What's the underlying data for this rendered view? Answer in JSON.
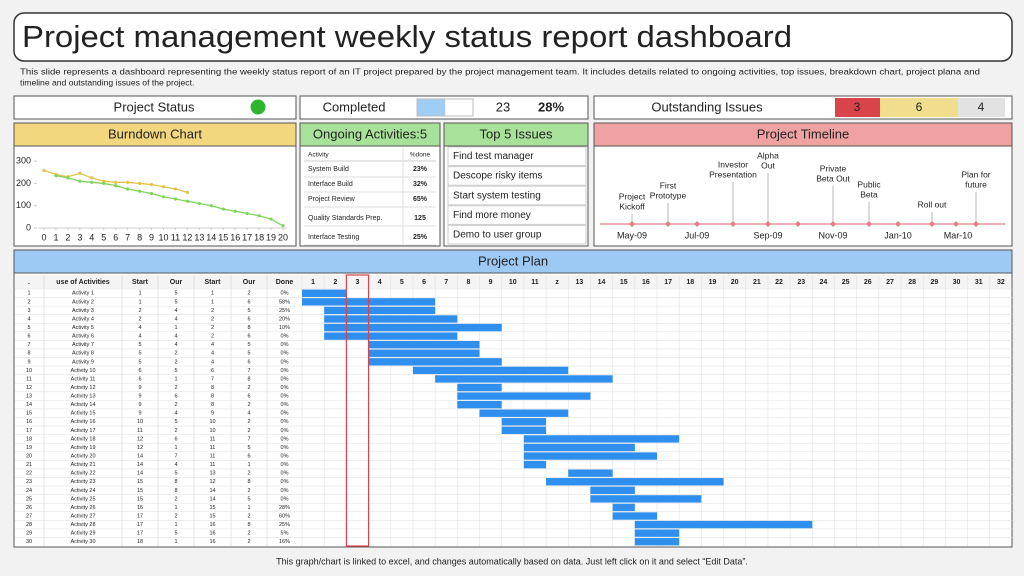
{
  "header": {
    "title": "Project management weekly status report dashboard",
    "description": [
      "This slide represents a dashboard representing the weekly status report of an IT project prepared by the project management team. It includes details related to ongoing activities, top issues, breakdown chart, project plana and",
      "timeline and outstanding issues of the project."
    ]
  },
  "status": {
    "project_status_label": "Project Status",
    "completed_label": "Completed",
    "completed_count": 23,
    "completed_percent": {
      "value": 28,
      "label": "28%"
    },
    "outstanding_label": "Outstanding Issues",
    "outstanding_counts": [
      3,
      6,
      4
    ]
  },
  "chart_data": {
    "type": "line",
    "title": "Burndown Chart",
    "x": [
      0,
      1,
      2,
      3,
      4,
      5,
      6,
      7,
      8,
      9,
      10,
      11,
      12,
      13,
      14,
      15,
      16,
      17,
      18,
      19,
      20
    ],
    "series": [
      {
        "color": "#e3c24a",
        "values": [
          258,
          240,
          230,
          245,
          225,
          210,
          205,
          205,
          200,
          195,
          185,
          175,
          160,
          null,
          null,
          null,
          null,
          null,
          null,
          null,
          null
        ]
      },
      {
        "color": "#7fd45c",
        "values": [
          null,
          235,
          225,
          210,
          205,
          200,
          190,
          175,
          165,
          155,
          140,
          130,
          120,
          110,
          100,
          85,
          75,
          65,
          55,
          40,
          10
        ]
      }
    ],
    "xlim": [
      0,
      20
    ],
    "ylim": [
      0,
      350
    ],
    "xticks": [
      0,
      1,
      2,
      3,
      4,
      5,
      6,
      7,
      8,
      9,
      10,
      11,
      12,
      13,
      14,
      15,
      16,
      17,
      18,
      19,
      20
    ],
    "yticks": [
      0,
      100,
      200,
      300
    ]
  },
  "ongoing": {
    "title": "Ongoing Activities:5",
    "columns": [
      "Activity",
      "%done"
    ],
    "rows": [
      [
        "System Build",
        "23%"
      ],
      [
        "Interface Build",
        "32%"
      ],
      [
        "Project Review",
        "65%"
      ],
      [
        "Quality Standards Prep.",
        "125"
      ],
      [
        "Interface Testing",
        "25%"
      ]
    ]
  },
  "issues": {
    "title": "Top 5 Issues",
    "items": [
      "Find test manager",
      "Descope risky items",
      "Start system testing",
      "Find more money",
      "Demo to user group"
    ]
  },
  "timeline": {
    "title": "Project Timeline",
    "months": [
      "May-09",
      "Jul-09",
      "Sep-09",
      "Nov-09",
      "Jan-10",
      "Mar-10"
    ],
    "events": [
      [
        "Project",
        "Kickoff"
      ],
      [
        "First",
        "Prototype"
      ],
      [
        "Investor",
        "Presentation"
      ],
      [
        "Alpha",
        "Out"
      ],
      [
        "Private",
        "Beta Out"
      ],
      [
        "Public",
        "Beta"
      ],
      [
        "Roll out"
      ],
      [
        "Plan  for",
        "future"
      ]
    ]
  },
  "plan": {
    "title": "Project Plan",
    "columns": [
      ".",
      "use of Activities",
      "Start",
      "Our",
      "Start",
      "Our",
      "Done"
    ],
    "weeks": [
      1,
      2,
      3,
      4,
      5,
      6,
      7,
      8,
      9,
      10,
      11,
      "z",
      13,
      14,
      15,
      16,
      17,
      18,
      19,
      20,
      21,
      22,
      23,
      24,
      25,
      26,
      27,
      28,
      29,
      30,
      31,
      32
    ],
    "rows": [
      [
        1,
        "Activity 1",
        1,
        5,
        1,
        2,
        "0%"
      ],
      [
        2,
        "Activity 2",
        1,
        5,
        1,
        6,
        "58%"
      ],
      [
        3,
        "Activity 3",
        2,
        4,
        2,
        5,
        "25%"
      ],
      [
        4,
        "Activity 4",
        2,
        4,
        2,
        6,
        "20%"
      ],
      [
        5,
        "Activity 5",
        4,
        1,
        2,
        8,
        "10%"
      ],
      [
        6,
        "Activity 6",
        4,
        4,
        2,
        6,
        "0%"
      ],
      [
        7,
        "Activity 7",
        5,
        4,
        4,
        5,
        "0%"
      ],
      [
        8,
        "Activity 8",
        5,
        2,
        4,
        5,
        "0%"
      ],
      [
        9,
        "Activity 9",
        5,
        2,
        4,
        6,
        "0%"
      ],
      [
        10,
        "Activity 10",
        6,
        5,
        6,
        7,
        "0%"
      ],
      [
        11,
        "Activity 11",
        6,
        1,
        7,
        8,
        "0%"
      ],
      [
        12,
        "Activity 12",
        9,
        2,
        8,
        2,
        "0%"
      ],
      [
        13,
        "Activity 13",
        9,
        6,
        8,
        6,
        "0%"
      ],
      [
        14,
        "Activity 14",
        9,
        2,
        8,
        2,
        "0%"
      ],
      [
        15,
        "Activity 15",
        9,
        4,
        9,
        4,
        "0%"
      ],
      [
        16,
        "Activity 16",
        10,
        5,
        10,
        2,
        "0%"
      ],
      [
        17,
        "Activity 17",
        11,
        2,
        10,
        2,
        "0%"
      ],
      [
        18,
        "Activity 18",
        12,
        6,
        11,
        7,
        "0%"
      ],
      [
        19,
        "Activity 19",
        12,
        1,
        11,
        5,
        "0%"
      ],
      [
        20,
        "Activity 20",
        14,
        7,
        11,
        6,
        "0%"
      ],
      [
        21,
        "Activity 21",
        14,
        4,
        11,
        1,
        "0%"
      ],
      [
        22,
        "Activity 22",
        14,
        5,
        13,
        2,
        "0%"
      ],
      [
        23,
        "Activity 23",
        15,
        8,
        12,
        8,
        "0%"
      ],
      [
        24,
        "Activity 24",
        15,
        8,
        14,
        2,
        "0%"
      ],
      [
        25,
        "Activity 25",
        15,
        2,
        14,
        5,
        "0%"
      ],
      [
        26,
        "Activity 26",
        16,
        1,
        15,
        1,
        "28%"
      ],
      [
        27,
        "Activity 27",
        17,
        2,
        15,
        2,
        "60%"
      ],
      [
        28,
        "Activity 28",
        17,
        1,
        16,
        8,
        "25%"
      ],
      [
        29,
        "Activity 29",
        17,
        5,
        16,
        2,
        "5%"
      ],
      [
        30,
        "Activity 30",
        18,
        1,
        16,
        2,
        "16%"
      ]
    ]
  },
  "footer": "This graph/chart is linked to excel, and changes automatically based on data. Just left click on it and select “Edit Data”."
}
